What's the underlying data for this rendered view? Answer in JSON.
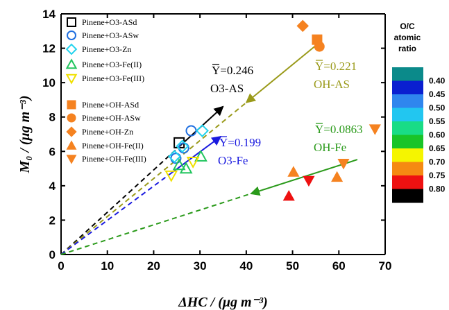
{
  "chart_data": {
    "type": "scatter",
    "xlabel": "ΔHC / (μg m⁻³)",
    "ylabel": "M₀ / (μg m⁻³)",
    "xlim": [
      0,
      70
    ],
    "ylim": [
      0,
      14
    ],
    "xticks": [
      "0",
      "10",
      "20",
      "30",
      "40",
      "50",
      "60",
      "70"
    ],
    "yticks": [
      "0",
      "2",
      "4",
      "6",
      "8",
      "10",
      "12",
      "14"
    ],
    "legend_position": "top-left",
    "series": [
      {
        "name": "Pinene+O3-ASd",
        "marker": "square-open",
        "color": "#000000",
        "points": [
          [
            25.5,
            6.5
          ]
        ]
      },
      {
        "name": "Pinene+O3-ASw",
        "marker": "circle-open",
        "color": "#1f6fe0",
        "points": [
          [
            24.8,
            5.6
          ],
          [
            26.5,
            6.2
          ],
          [
            28.1,
            7.2
          ]
        ]
      },
      {
        "name": "Pinene+O3-Zn",
        "marker": "diamond-open",
        "color": "#22d3ee",
        "points": [
          [
            24.5,
            5.7
          ],
          [
            26.2,
            6.3
          ],
          [
            30.5,
            7.2
          ]
        ]
      },
      {
        "name": "Pinene+O3-Fe(II)",
        "marker": "triangle-up-open",
        "color": "#22c55e",
        "points": [
          [
            25.5,
            5.2
          ],
          [
            27.0,
            5.0
          ],
          [
            30.2,
            5.7
          ]
        ]
      },
      {
        "name": "Pinene+O3-Fe(III)",
        "marker": "triangle-down-open",
        "color": "#f0e000",
        "points": [
          [
            23.8,
            4.6
          ],
          [
            28.5,
            5.4
          ]
        ]
      },
      {
        "name": "Pinene+OH-ASd",
        "marker": "square",
        "color": "#f58220",
        "points": [
          [
            55.3,
            12.5
          ]
        ]
      },
      {
        "name": "Pinene+OH-ASw",
        "marker": "circle",
        "color": "#f58220",
        "points": [
          [
            55.8,
            12.1
          ]
        ]
      },
      {
        "name": "Pinene+OH-Zn",
        "marker": "diamond",
        "color": "#f58220",
        "points": [
          [
            52.2,
            13.3
          ]
        ]
      },
      {
        "name": "Pinene+OH-Fe(II)",
        "marker": "triangle-up",
        "color": "#f58220",
        "points": [
          [
            50.2,
            4.8
          ],
          [
            59.6,
            4.5
          ]
        ]
      },
      {
        "name": "Pinene+OH-Fe(III)",
        "marker": "triangle-down",
        "color": "#f58220",
        "points": [
          [
            61.0,
            5.3
          ],
          [
            67.8,
            7.3
          ]
        ]
      },
      {
        "name": "",
        "marker": "triangle-up",
        "color": "#ee1111",
        "points": [
          [
            49.2,
            3.4
          ]
        ]
      },
      {
        "name": "",
        "marker": "triangle-down",
        "color": "#ee1111",
        "points": [
          [
            53.5,
            4.3
          ]
        ]
      }
    ],
    "fit_lines": [
      {
        "label": "Y=0.246",
        "sublabel": "O3-AS",
        "slope": 0.246,
        "solid_from": 25.5,
        "solid_to": 35,
        "color": "#000000",
        "arrow": "end"
      },
      {
        "label": "Y=0.221",
        "sublabel": "OH-AS",
        "slope": 0.221,
        "solid_from": 40,
        "solid_to": 55.3,
        "color": "#9a9a1a",
        "arrow": "start"
      },
      {
        "label": "Y=0.199",
        "sublabel": "O3-Fe",
        "slope": 0.199,
        "solid_from": 24,
        "solid_to": 34.5,
        "color": "#1a1adf",
        "arrow": "end"
      },
      {
        "label": "Y=0.0863",
        "sublabel": "OH-Fe",
        "slope": 0.0863,
        "solid_from": 41,
        "solid_to": 64,
        "color": "#2a9a1a",
        "arrow": "start"
      }
    ],
    "colorbar": {
      "title": [
        "O/C",
        "atomic",
        "ratio"
      ],
      "ticks": [
        "0.40",
        "0.45",
        "0.50",
        "0.55",
        "0.60",
        "0.65",
        "0.70",
        "0.75",
        "0.80"
      ],
      "colors": [
        "#0b8a8a",
        "#0a1fd0",
        "#2f86ee",
        "#22c6f0",
        "#19dc86",
        "#19c428",
        "#f5f500",
        "#f58a12",
        "#ee1111",
        "#000000"
      ]
    }
  }
}
